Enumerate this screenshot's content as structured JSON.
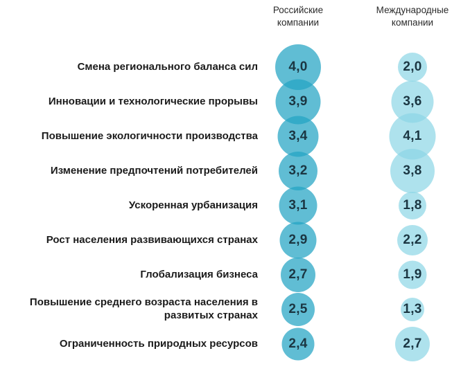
{
  "chart_data": {
    "type": "bubble",
    "columns": [
      {
        "id": "russian",
        "label": "Российские\nкомпании",
        "bubble_color": "#23a3c3",
        "bubble_opacity": 0.72
      },
      {
        "id": "international",
        "label": "Международные\nкомпании",
        "bubble_color": "#8bd6e5",
        "bubble_opacity": 0.7
      }
    ],
    "rows": [
      {
        "label": "Смена регионального баланса сил",
        "values": [
          4.0,
          2.0
        ],
        "display": [
          "4,0",
          "2,0"
        ]
      },
      {
        "label": "Инновации и технологические прорывы",
        "values": [
          3.9,
          3.6
        ],
        "display": [
          "3,9",
          "3,6"
        ]
      },
      {
        "label": "Повышение экологичности производства",
        "values": [
          3.4,
          4.1
        ],
        "display": [
          "3,4",
          "4,1"
        ]
      },
      {
        "label": "Изменение предпочтений потребителей",
        "values": [
          3.2,
          3.8
        ],
        "display": [
          "3,2",
          "3,8"
        ]
      },
      {
        "label": "Ускоренная урбанизация",
        "values": [
          3.1,
          1.8
        ],
        "display": [
          "3,1",
          "1,8"
        ]
      },
      {
        "label": "Рост населения развивающихся странах",
        "values": [
          2.9,
          2.2
        ],
        "display": [
          "2,9",
          "2,2"
        ]
      },
      {
        "label": "Глобализация бизнеса",
        "values": [
          2.7,
          1.9
        ],
        "display": [
          "2,7",
          "1,9"
        ]
      },
      {
        "label": "Повышение среднего возраста населения в развитых странах",
        "values": [
          2.5,
          1.3
        ],
        "display": [
          "2,5",
          "1,3"
        ]
      },
      {
        "label": "Ограниченность природных ресурсов",
        "values": [
          2.4,
          2.7
        ],
        "display": [
          "2,4",
          "2,7"
        ]
      }
    ],
    "size_rule": "diameter_px = 18 + value * 12",
    "text_color": "#1b3642",
    "legend_position": "top-column-headers",
    "grid": false
  }
}
